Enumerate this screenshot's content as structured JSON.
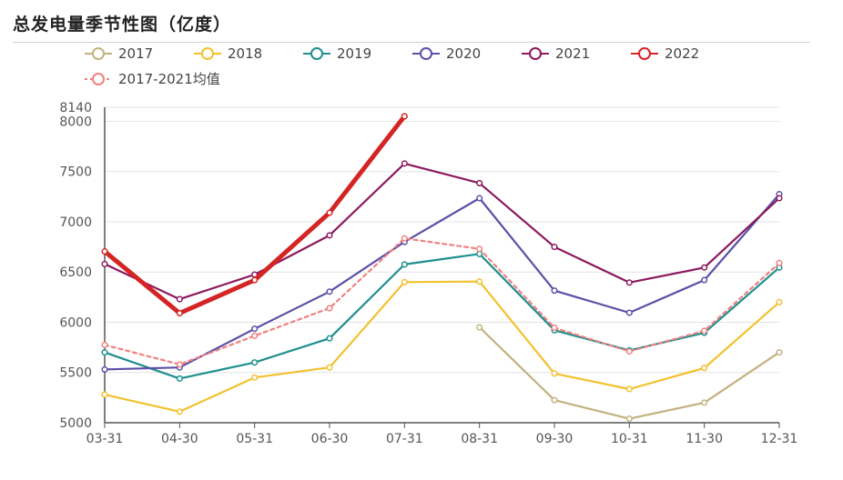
{
  "chart_data": {
    "type": "line",
    "title": "总发电量季节性图（亿度）",
    "xlabel": "",
    "ylabel": "",
    "categories": [
      "03-31",
      "04-30",
      "05-31",
      "06-30",
      "07-31",
      "08-31",
      "09-30",
      "10-31",
      "11-30",
      "12-31"
    ],
    "ylim": [
      5000,
      8140
    ],
    "yticks": [
      5000,
      5500,
      6000,
      6500,
      7000,
      7500,
      8000,
      8140
    ],
    "grid": true,
    "legend_position": "top",
    "series": [
      {
        "name": "2017",
        "color": "#c2b280",
        "values": [
          null,
          null,
          null,
          null,
          null,
          5950,
          5225,
          5040,
          5200,
          5700
        ]
      },
      {
        "name": "2018",
        "color": "#f2c12e",
        "values": [
          5280,
          5110,
          5450,
          5550,
          6400,
          6405,
          5490,
          5335,
          5545,
          6200
        ]
      },
      {
        "name": "2019",
        "color": "#1f8f8f",
        "values": [
          5700,
          5440,
          5600,
          5840,
          6575,
          6680,
          5920,
          5720,
          5895,
          6545
        ]
      },
      {
        "name": "2020",
        "color": "#5a50a8",
        "values": [
          5530,
          5550,
          5935,
          6305,
          6800,
          7235,
          6315,
          6095,
          6420,
          7275
        ]
      },
      {
        "name": "2021",
        "color": "#8b1a5e",
        "values": [
          6580,
          6230,
          6475,
          6865,
          7580,
          7385,
          6750,
          6395,
          6545,
          7235
        ]
      },
      {
        "name": "2022",
        "color": "#d42424",
        "values": [
          6705,
          6090,
          6420,
          7090,
          8050,
          null,
          null,
          null,
          null,
          null
        ]
      },
      {
        "name": "2017-2021均值",
        "color": "#f08080",
        "dashed": true,
        "values": [
          5775,
          5580,
          5865,
          6140,
          6835,
          6730,
          5945,
          5710,
          5915,
          6590
        ]
      }
    ]
  }
}
